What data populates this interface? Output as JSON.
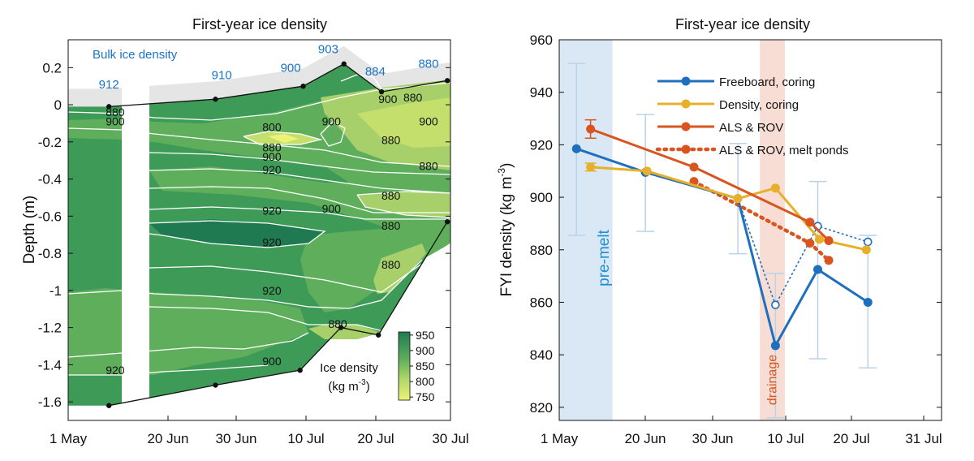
{
  "chart_data": [
    {
      "type": "contour",
      "title": "First-year ice density",
      "ylabel": "Depth (m)",
      "xlabel": "",
      "x_tick_labels": [
        "1 May",
        "20 Jun",
        "30 Jun",
        "10 Jul",
        "20 Jul",
        "30 Jul"
      ],
      "y_ticks": [
        0.2,
        0,
        -0.2,
        -0.4,
        -0.6,
        -0.8,
        -1,
        -1.2,
        -1.4,
        -1.6
      ],
      "y_tick_labels": [
        "0.2",
        "0",
        "-0.2",
        "-0.4",
        "-0.6",
        "-0.8",
        "-1",
        "-1.2",
        "-1.4",
        "-1.6"
      ],
      "ylim": [
        -1.7,
        0.35
      ],
      "bulk_label": "Bulk ice density",
      "bulk_values": [
        {
          "label": "912",
          "day": 13,
          "depth": 0.11
        },
        {
          "label": "910",
          "day": 49,
          "depth": 0.16
        },
        {
          "label": "900",
          "day": 71,
          "depth": 0.2
        },
        {
          "label": "903",
          "day": 83,
          "depth": 0.3
        },
        {
          "label": "884",
          "day": 98,
          "depth": 0.18
        },
        {
          "label": "880",
          "day": 115,
          "depth": 0.22
        }
      ],
      "surface_points": [
        {
          "day": 13,
          "depth": -0.01
        },
        {
          "day": 47,
          "depth": 0.03
        },
        {
          "day": 75,
          "depth": 0.1
        },
        {
          "day": 88,
          "depth": 0.22
        },
        {
          "day": 100,
          "depth": 0.07
        },
        {
          "day": 121,
          "depth": 0.13
        }
      ],
      "bottom_points": [
        {
          "day": 13,
          "depth": -1.62
        },
        {
          "day": 47,
          "depth": -1.51
        },
        {
          "day": 74,
          "depth": -1.43
        },
        {
          "day": 87,
          "depth": -1.2
        },
        {
          "day": 99,
          "depth": -1.24
        },
        {
          "day": 121,
          "depth": -0.63
        }
      ],
      "contour_labels": [
        {
          "label": "880",
          "day": 15,
          "depth": -0.04
        },
        {
          "label": "900",
          "day": 15,
          "depth": -0.09
        },
        {
          "label": "800",
          "day": 65,
          "depth": -0.12
        },
        {
          "label": "880",
          "day": 65,
          "depth": -0.23
        },
        {
          "label": "900",
          "day": 65,
          "depth": -0.28
        },
        {
          "label": "920",
          "day": 65,
          "depth": -0.35
        },
        {
          "label": "920",
          "day": 65,
          "depth": -0.57
        },
        {
          "label": "920",
          "day": 65,
          "depth": -0.74
        },
        {
          "label": "920",
          "day": 65,
          "depth": -1.0
        },
        {
          "label": "900",
          "day": 65,
          "depth": -1.38
        },
        {
          "label": "920",
          "day": 15,
          "depth": -1.43
        },
        {
          "label": "900",
          "day": 84,
          "depth": -0.09
        },
        {
          "label": "900",
          "day": 84,
          "depth": -0.56
        },
        {
          "label": "880",
          "day": 103,
          "depth": -0.19
        },
        {
          "label": "880",
          "day": 103,
          "depth": -0.49
        },
        {
          "label": "880",
          "day": 103,
          "depth": -0.65
        },
        {
          "label": "880",
          "day": 103,
          "depth": -0.86
        },
        {
          "label": "880",
          "day": 86,
          "depth": -1.18
        },
        {
          "label": "900",
          "day": 102,
          "depth": 0.03
        },
        {
          "label": "880",
          "day": 110,
          "depth": 0.04
        },
        {
          "label": "900",
          "day": 115,
          "depth": -0.09
        },
        {
          "label": "880",
          "day": 115,
          "depth": -0.33
        }
      ],
      "colorbar": {
        "label_line1": "Ice density",
        "label_line2": "(kg m",
        "label_sup": "-3",
        "label_end": ")",
        "range": [
          740,
          960
        ],
        "ticks": [
          "950",
          "900",
          "850",
          "800",
          "750"
        ]
      }
    },
    {
      "type": "line",
      "title": "First-year ice density",
      "ylabel": "FYI density (kg m",
      "ylabel_sup": "-3",
      "ylabel_end": ")",
      "x_tick_labels": [
        "1 May",
        "20 Jun",
        "30 Jun",
        "10 Jul",
        "20 Jul",
        "31 Jul"
      ],
      "ylim": [
        815,
        960
      ],
      "y_ticks": [
        820,
        840,
        860,
        880,
        900,
        920,
        940,
        960
      ],
      "y_tick_labels": [
        "820",
        "840",
        "860",
        "880",
        "900",
        "920",
        "940",
        "960"
      ],
      "shaded": [
        {
          "label": "pre-melt",
          "x0": 0,
          "x1": 17,
          "color": "#d6e6f5"
        },
        {
          "label": "drainage",
          "x0": 64,
          "x1": 72,
          "color": "#f6d9ce"
        }
      ],
      "legend": [
        "Freeboard, coring",
        "Density, coring",
        "ALS & ROV",
        "ALS & ROV, melt ponds"
      ],
      "series": [
        {
          "name": "Freeboard, coring",
          "color": "#1f6fbf",
          "points": [
            [
              5.5,
              918.5
            ],
            [
              27.5,
              909.5
            ],
            [
              57,
              899.5
            ],
            [
              69,
              843.5
            ],
            [
              82.5,
              872.5
            ],
            [
              98.5,
              860
            ]
          ],
          "errors": [
            [
              5.5,
              885.5,
              951
            ],
            [
              27.5,
              887,
              931.5
            ],
            [
              57,
              878.5,
              920.5
            ],
            [
              69,
              816,
              871
            ],
            [
              82.5,
              838.5,
              906
            ],
            [
              98.5,
              835,
              885.5
            ]
          ]
        },
        {
          "name": "Density, coring",
          "color": "#e8b02a",
          "points": [
            [
              10,
              911.5
            ],
            [
              28,
              910
            ],
            [
              57,
              899.5
            ],
            [
              69,
              903.5
            ],
            [
              83,
              884
            ],
            [
              98,
              880
            ]
          ],
          "errors": [
            [
              10,
              910,
              913
            ]
          ]
        },
        {
          "name": "ALS & ROV",
          "color": "#d9541e",
          "points": [
            [
              10,
              926
            ],
            [
              43,
              911.5
            ],
            [
              80,
              890.5
            ],
            [
              86,
              883.5
            ]
          ],
          "errors": [
            [
              10,
              922.5,
              929.5
            ]
          ]
        },
        {
          "name": "ALS & ROV, melt ponds",
          "color": "#d9541e",
          "points": [
            [
              43,
              906
            ],
            [
              80,
              882.5
            ],
            [
              86,
              876
            ]
          ]
        },
        {
          "name": "melt ponds (freeboard)",
          "color": "#1f6fbf",
          "points": [
            [
              57,
              899.5
            ],
            [
              69,
              859
            ],
            [
              82.5,
              889
            ],
            [
              98.5,
              883
            ]
          ]
        }
      ]
    }
  ]
}
